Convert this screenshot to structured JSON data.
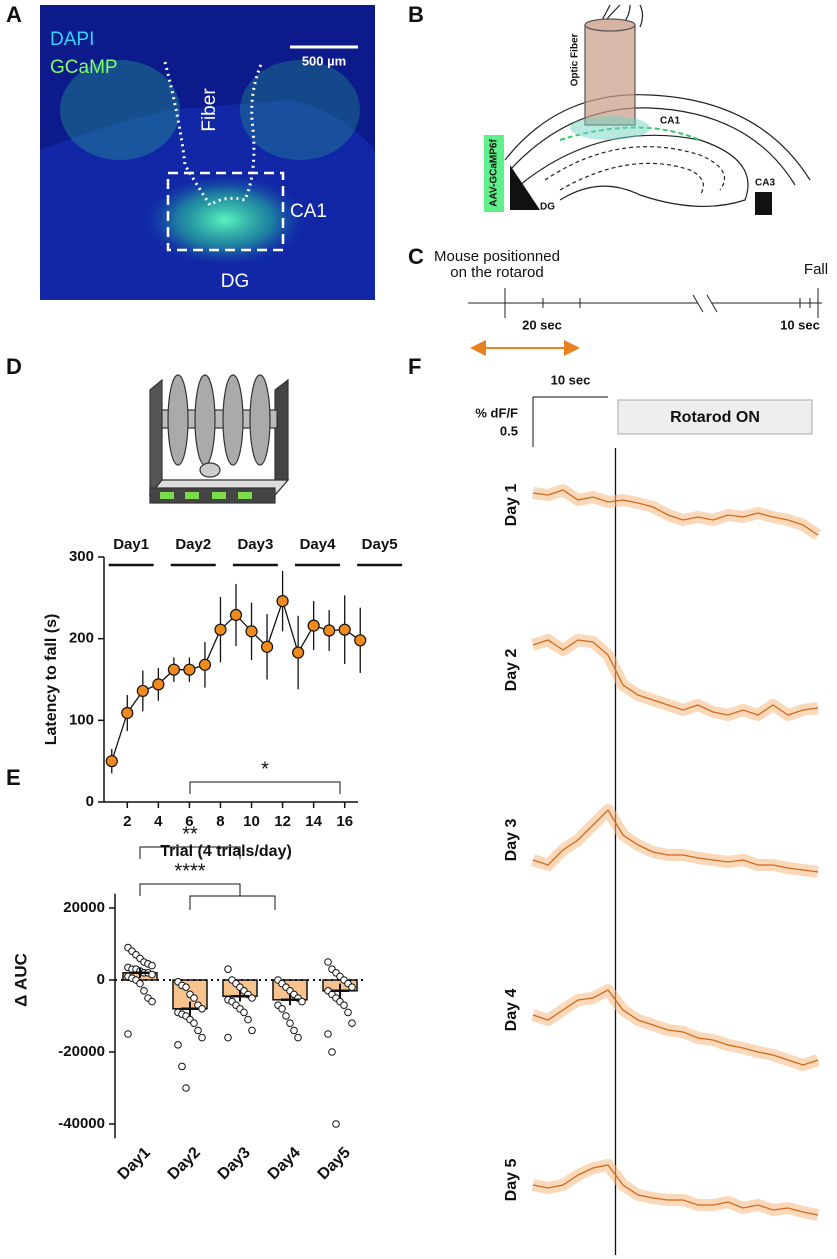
{
  "panel_labels": [
    "A",
    "B",
    "C",
    "D",
    "E",
    "F"
  ],
  "panel_a": {
    "labels": [
      "DAPI",
      "GCaMP"
    ],
    "scale_bar": "500 µm",
    "regions": [
      "Fiber",
      "CA1",
      "DG"
    ]
  },
  "panel_b": {
    "labels": [
      "Optic Fiber",
      "CA1",
      "CA3",
      "DG",
      "AAV-GCaMP6f"
    ]
  },
  "panel_c": {
    "start": [
      "Mouse positionned",
      "on the rotarod"
    ],
    "end": "Fall",
    "durations": [
      "20 sec",
      "10 sec"
    ]
  },
  "chart_data": [
    {
      "type": "line",
      "xlabel": "Trial (4 trials/day)",
      "ylabel": "Latency to fall (s)",
      "x": [
        1,
        2,
        3,
        4,
        5,
        6,
        7,
        8,
        9,
        10,
        11,
        12,
        13,
        14,
        15,
        16,
        17
      ],
      "series": [
        {
          "color": "#f08a1c",
          "values": [
            50,
            109,
            136,
            144,
            162,
            162,
            168,
            211,
            229,
            209,
            190,
            246,
            183,
            216,
            210,
            211,
            198
          ],
          "errors": [
            15,
            22,
            25,
            20,
            15,
            15,
            28,
            40,
            38,
            35,
            40,
            37,
            45,
            30,
            25,
            42,
            40
          ]
        }
      ],
      "xlim": [
        0.5,
        17.5
      ],
      "ylim": [
        0,
        300
      ],
      "xticks": [
        2,
        4,
        6,
        8,
        10,
        12,
        14,
        16
      ],
      "yticks": [
        0,
        100,
        200,
        300
      ],
      "day_groups": [
        {
          "label": "Day1",
          "trials": [
            1,
            4
          ]
        },
        {
          "label": "Day2",
          "trials": [
            5,
            8
          ]
        },
        {
          "label": "Day3",
          "trials": [
            9,
            12
          ]
        },
        {
          "label": "Day4",
          "trials": [
            13,
            16
          ]
        },
        {
          "label": "Day5",
          "trials": [
            17,
            20
          ]
        }
      ]
    },
    {
      "type": "bar_scatter",
      "ylabel": "Δ AUC",
      "categories": [
        "Day1",
        "Day2",
        "Day3",
        "Day4",
        "Day5"
      ],
      "values": [
        2000,
        -8000,
        -4500,
        -5500,
        -3000
      ],
      "errors": [
        1500,
        2000,
        1500,
        1500,
        2000
      ],
      "color": "#f9c38e",
      "points": [
        [
          9000,
          8000,
          7000,
          6000,
          5000,
          4500,
          4000,
          3500,
          3000,
          3000,
          2500,
          2000,
          2000,
          1500,
          1000,
          500,
          0,
          -1000,
          -3000,
          -5000,
          -6000,
          -15000
        ],
        [
          -500,
          -1500,
          -2000,
          -4000,
          -5000,
          -7000,
          -8000,
          -9000,
          -9500,
          -10000,
          -11000,
          -12000,
          -14000,
          -16000,
          -18000,
          -24000,
          -30000
        ],
        [
          3000,
          0,
          -1000,
          -2000,
          -3000,
          -4000,
          -5000,
          -5500,
          -6000,
          -7000,
          -8000,
          -9000,
          -11000,
          -14000,
          -16000
        ],
        [
          0,
          -1000,
          -2000,
          -3000,
          -4000,
          -5000,
          -6000,
          -7000,
          -8000,
          -10000,
          -12000,
          -14000,
          -16000
        ],
        [
          5000,
          3000,
          2000,
          1000,
          0,
          -1000,
          -2000,
          -3000,
          -4000,
          -5000,
          -6000,
          -7000,
          -9000,
          -12000,
          -15000,
          -20000,
          -40000
        ]
      ],
      "ylim": [
        -44000,
        24000
      ],
      "yticks": [
        -40000,
        -20000,
        0,
        20000
      ],
      "reference_line": 0,
      "significance": [
        {
          "label": "*",
          "from": 1,
          "to": [
            4,
            4
          ]
        },
        {
          "label": "**",
          "from": 0,
          "to": [
            2,
            2
          ]
        },
        {
          "label": "****",
          "from": 0,
          "to": [
            1,
            3
          ]
        }
      ]
    },
    {
      "type": "traces",
      "annotation": "Rotarod ON",
      "scale_x": {
        "value": 10,
        "label": "10 sec"
      },
      "scale_y": {
        "value": 0.5,
        "label": "0.5",
        "unit": "% dF/F"
      },
      "x": [
        -11,
        -9,
        -7,
        -5,
        -3,
        -1,
        1,
        3,
        5,
        7,
        9,
        11,
        13,
        15,
        17,
        19,
        21,
        23,
        25,
        27
      ],
      "xlim": [
        -11,
        27
      ],
      "event_x": 0,
      "color": "#d2691e",
      "series": [
        {
          "name": "Day 1",
          "values": [
            0.12,
            0.1,
            0.15,
            0.05,
            0.08,
            0.03,
            0.05,
            0.02,
            -0.02,
            -0.1,
            -0.15,
            -0.12,
            -0.15,
            -0.1,
            -0.12,
            -0.08,
            -0.12,
            -0.15,
            -0.2,
            -0.3
          ]
        },
        {
          "name": "Day 2",
          "values": [
            0.25,
            0.3,
            0.2,
            0.3,
            0.28,
            0.15,
            -0.15,
            -0.25,
            -0.3,
            -0.35,
            -0.4,
            -0.35,
            -0.42,
            -0.45,
            -0.4,
            -0.45,
            -0.35,
            -0.45,
            -0.4,
            -0.38
          ]
        },
        {
          "name": "Day 3",
          "values": [
            -0.2,
            -0.25,
            -0.1,
            0.0,
            0.15,
            0.3,
            0.05,
            -0.05,
            -0.12,
            -0.15,
            -0.15,
            -0.18,
            -0.2,
            -0.22,
            -0.2,
            -0.25,
            -0.25,
            -0.28,
            -0.3,
            -0.32
          ]
        },
        {
          "name": "Day 4",
          "values": [
            -0.05,
            -0.1,
            0.0,
            0.1,
            0.12,
            0.2,
            0.0,
            -0.1,
            -0.15,
            -0.2,
            -0.22,
            -0.28,
            -0.3,
            -0.35,
            -0.38,
            -0.42,
            -0.45,
            -0.5,
            -0.55,
            -0.5
          ]
        },
        {
          "name": "Day 5",
          "values": [
            -0.05,
            -0.08,
            -0.05,
            0.05,
            0.12,
            0.15,
            -0.05,
            -0.15,
            -0.18,
            -0.2,
            -0.2,
            -0.25,
            -0.25,
            -0.22,
            -0.28,
            -0.25,
            -0.3,
            -0.28,
            -0.32,
            -0.35
          ]
        }
      ]
    }
  ]
}
